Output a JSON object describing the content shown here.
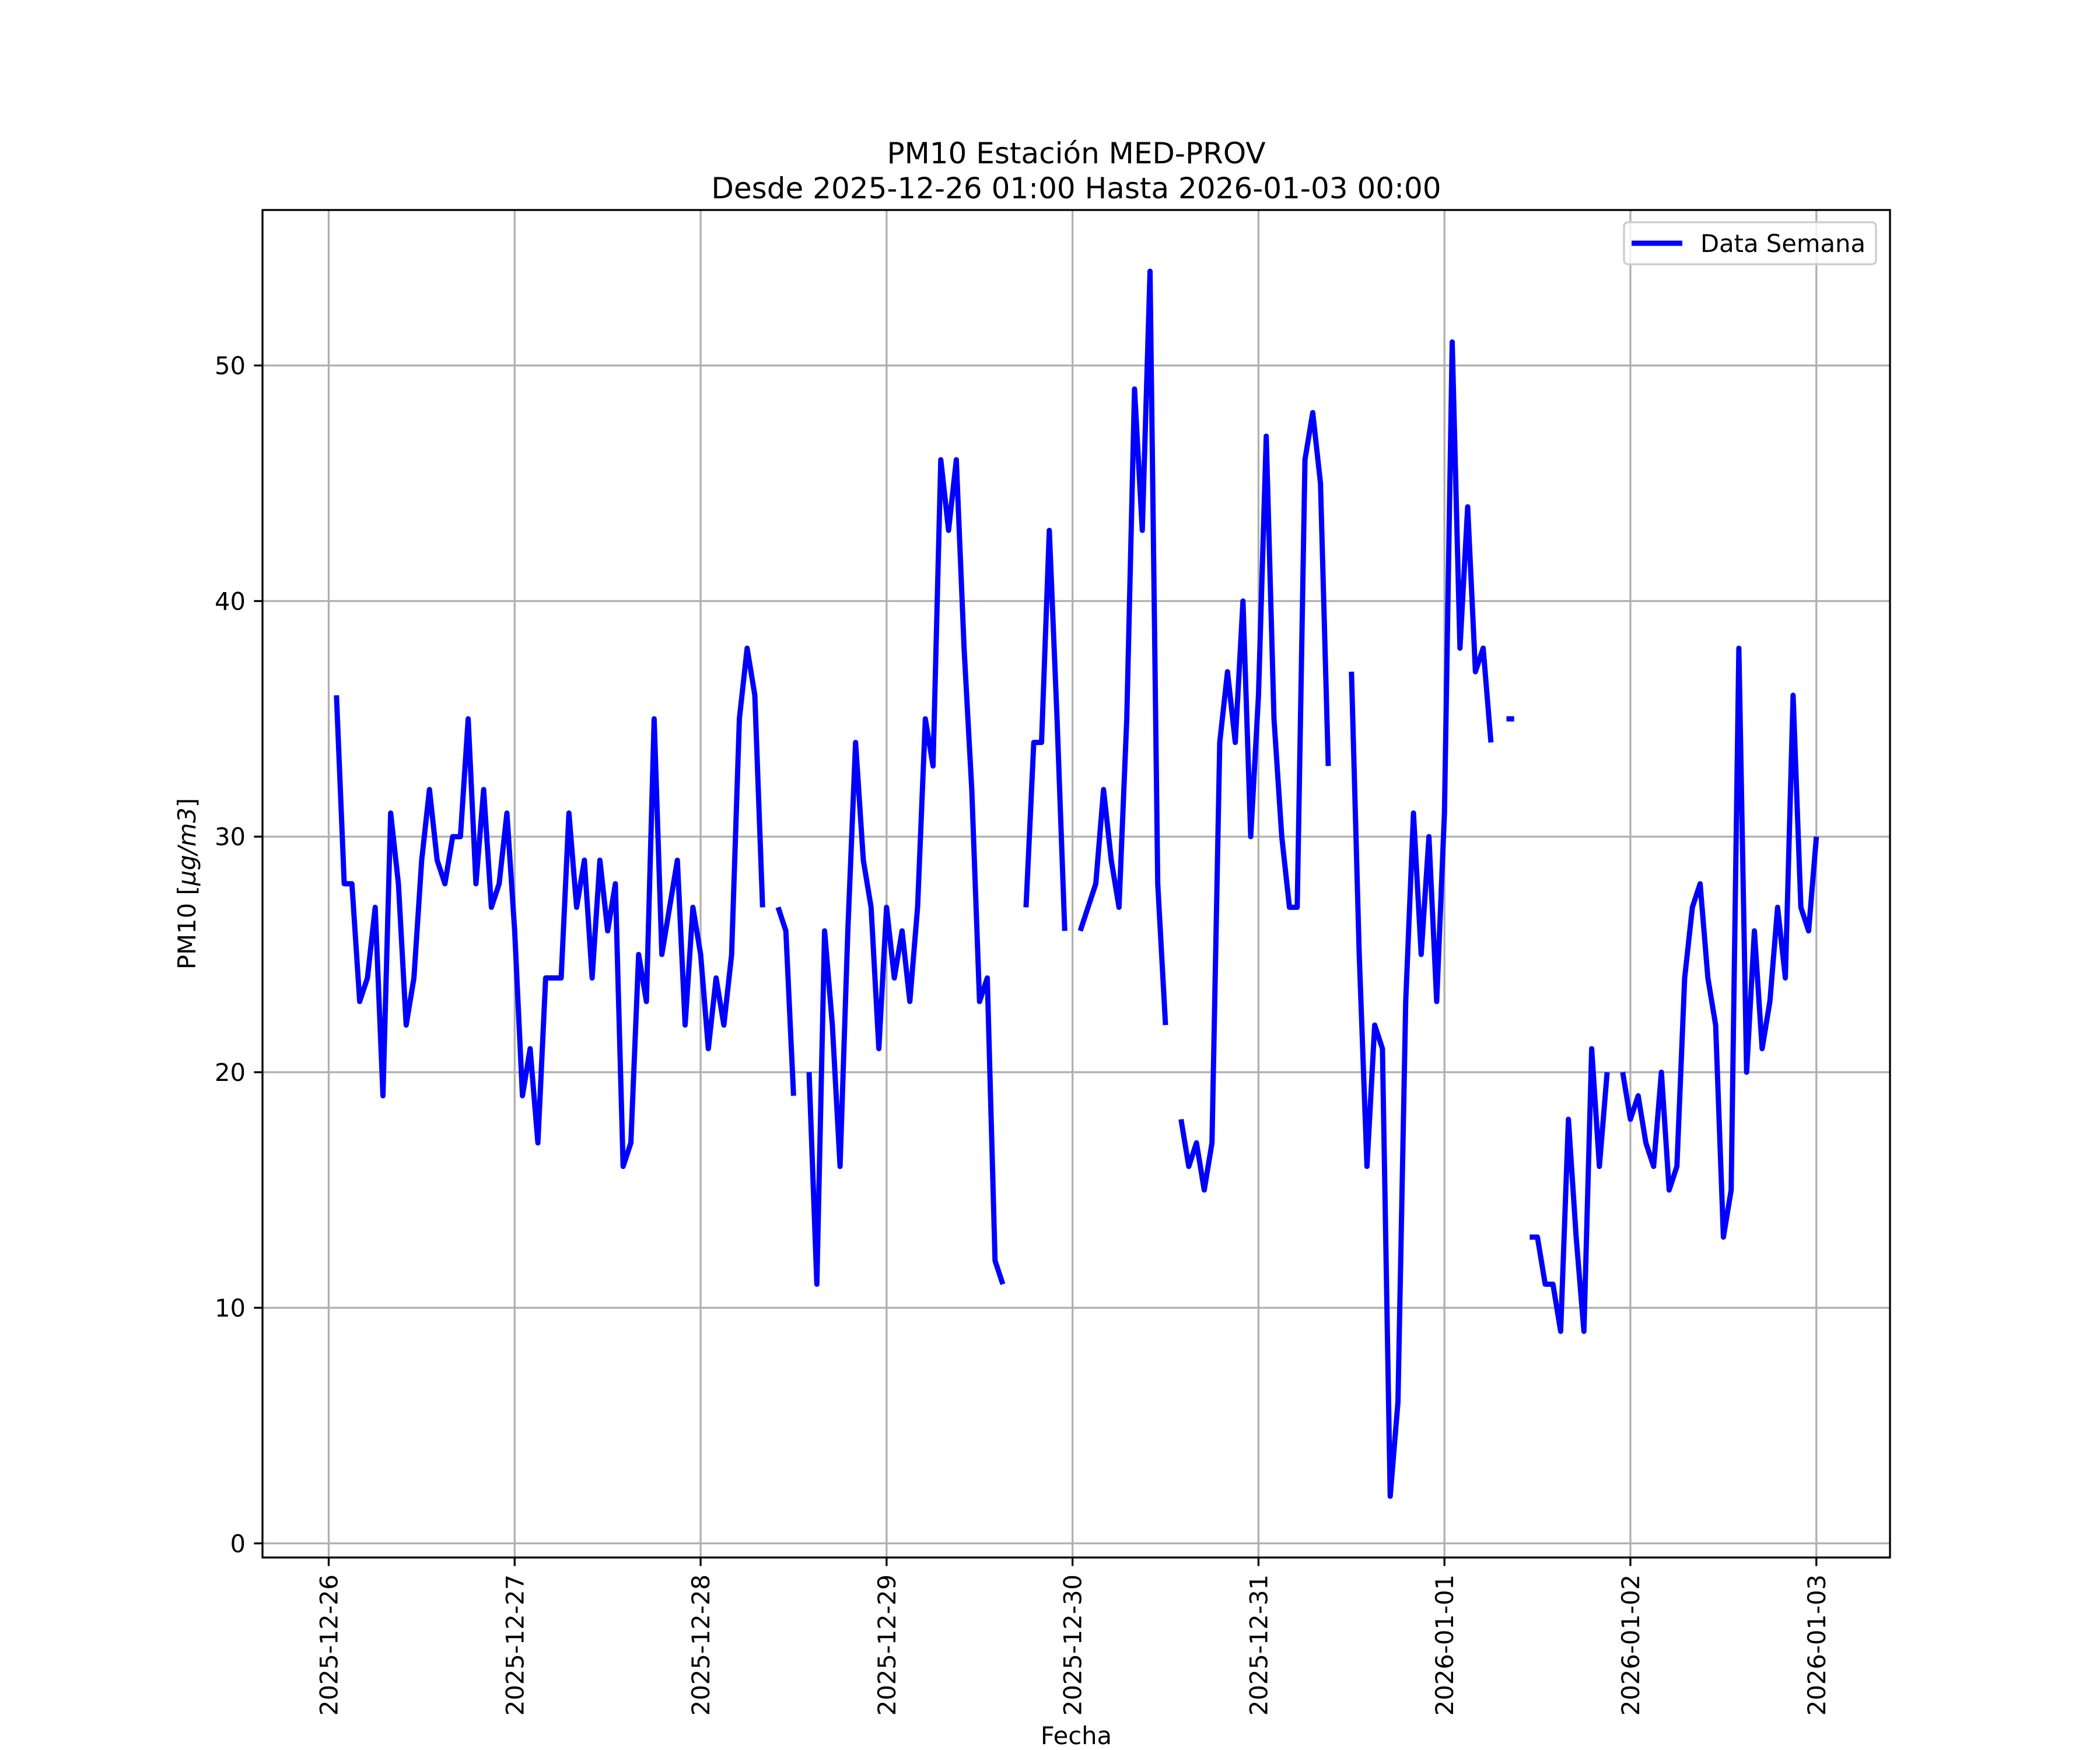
{
  "chart_data": {
    "type": "line",
    "title": [
      "PM10 Estación MED-PROV",
      "Desde 2025-12-26 01:00 Hasta 2026-01-03 00:00"
    ],
    "xlabel": "Fecha",
    "ylabel": "PM10 [μg/m3]",
    "ylabel_parts": {
      "prefix": "PM10 [",
      "math": "μg/m3",
      "suffix": "]"
    },
    "x_start": "2025-12-26 01:00",
    "x_step_hours": 1,
    "x_tick_labels": [
      "2025-12-26",
      "2025-12-27",
      "2025-12-28",
      "2025-12-29",
      "2025-12-30",
      "2025-12-31",
      "2026-01-01",
      "2026-01-02",
      "2026-01-03"
    ],
    "y_ticks": [
      0,
      10,
      20,
      30,
      40,
      50
    ],
    "y_tick_labels": [
      "0",
      "10",
      "20",
      "30",
      "40",
      "50"
    ],
    "xlim_days_from_2025_12_26": [
      -0.356,
      8.396
    ],
    "ylim": [
      -0.6,
      56.6
    ],
    "grid": true,
    "legend": {
      "position": "top-right",
      "entries": [
        "Data Semana"
      ]
    },
    "series": [
      {
        "name": "Data Semana",
        "color": "#0000ff",
        "values": [
          36,
          28,
          28,
          23,
          24,
          27,
          19,
          31,
          28,
          22,
          24,
          29,
          32,
          29,
          28,
          30,
          30,
          35,
          28,
          32,
          27,
          28,
          31,
          26,
          19,
          21,
          17,
          24,
          24,
          24,
          31,
          27,
          29,
          24,
          29,
          26,
          28,
          16,
          17,
          25,
          23,
          35,
          25,
          27,
          29,
          22,
          27,
          25,
          21,
          24,
          22,
          25,
          35,
          38,
          36,
          27,
          null,
          27,
          26,
          19,
          null,
          20,
          11,
          26,
          22,
          16,
          26,
          34,
          29,
          27,
          21,
          27,
          24,
          26,
          23,
          27,
          35,
          33,
          46,
          43,
          46,
          38,
          32,
          23,
          24,
          12,
          11,
          null,
          null,
          27,
          34,
          34,
          43,
          35,
          26,
          null,
          26,
          27,
          28,
          32,
          29,
          27,
          35,
          49,
          43,
          54,
          28,
          22,
          null,
          18,
          16,
          17,
          15,
          17,
          34,
          37,
          34,
          40,
          30,
          36,
          47,
          35,
          30,
          27,
          27,
          46,
          48,
          45,
          33,
          null,
          null,
          37,
          25,
          16,
          22,
          21,
          2,
          6,
          23,
          31,
          25,
          30,
          23,
          31,
          51,
          38,
          44,
          37,
          38,
          34,
          null,
          35,
          35,
          null,
          13,
          13,
          11,
          11,
          9,
          18,
          13,
          9,
          21,
          16,
          20,
          null,
          20,
          18,
          19,
          17,
          16,
          20,
          15,
          16,
          24,
          27,
          28,
          24,
          22,
          13,
          15,
          38,
          20,
          26,
          21,
          23,
          27,
          24,
          36,
          27,
          26,
          30
        ]
      }
    ]
  }
}
